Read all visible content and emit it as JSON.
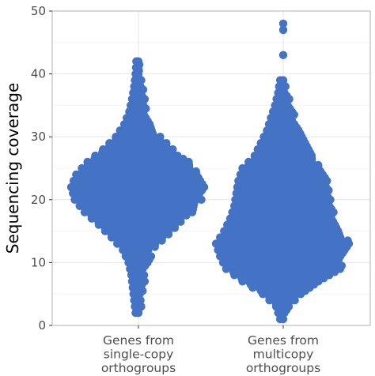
{
  "chart_data": {
    "type": "scatter",
    "subtype": "beeswarm",
    "ylabel": "Sequencing coverage",
    "ylim": [
      0,
      50
    ],
    "yticks": [
      0,
      10,
      20,
      30,
      40,
      50
    ],
    "grid": true,
    "colors": {
      "points": "#4472c4",
      "grid_major": "#e6e6e6",
      "grid_minor": "#f2f2f2",
      "panel_border": "#bdbdbd",
      "axis_text": "#4d4d4d"
    },
    "categories": [
      [
        "Genes from",
        "single-copy",
        "orthogroups"
      ],
      [
        "Genes from",
        "multicopy",
        "orthogroups"
      ]
    ],
    "groups": [
      {
        "profile": [
          [
            2,
            0.4
          ],
          [
            4,
            0.6
          ],
          [
            6,
            0.8
          ],
          [
            8,
            1
          ],
          [
            10,
            1.4
          ],
          [
            12,
            2.2
          ],
          [
            14,
            3.8
          ],
          [
            16,
            5.6
          ],
          [
            18,
            7.6
          ],
          [
            20,
            9
          ],
          [
            22,
            9.5
          ],
          [
            24,
            8.8
          ],
          [
            26,
            7.2
          ],
          [
            28,
            5
          ],
          [
            30,
            3.2
          ],
          [
            32,
            2
          ],
          [
            34,
            1.3
          ],
          [
            36,
            0.9
          ],
          [
            38,
            0.6
          ],
          [
            40,
            0.4
          ],
          [
            42,
            0.3
          ]
        ],
        "outliers": [
          2,
          4,
          5,
          6,
          7,
          8,
          37,
          38,
          39,
          40,
          41,
          42
        ]
      },
      {
        "profile": [
          [
            1,
            0.3
          ],
          [
            3,
            0.7
          ],
          [
            5,
            2
          ],
          [
            7,
            4
          ],
          [
            9,
            5.6
          ],
          [
            11,
            6.2
          ],
          [
            13,
            6.6
          ],
          [
            15,
            5.8
          ],
          [
            17,
            5.2
          ],
          [
            19,
            4.8
          ],
          [
            21,
            4.6
          ],
          [
            23,
            4.4
          ],
          [
            25,
            4
          ],
          [
            27,
            2.8
          ],
          [
            29,
            2.2
          ],
          [
            31,
            1.6
          ],
          [
            33,
            1.2
          ],
          [
            35,
            0.8
          ],
          [
            37,
            0.5
          ],
          [
            39,
            0.3
          ]
        ],
        "outliers": [
          1,
          3,
          36,
          37,
          38,
          39,
          43,
          47,
          48
        ]
      }
    ]
  }
}
